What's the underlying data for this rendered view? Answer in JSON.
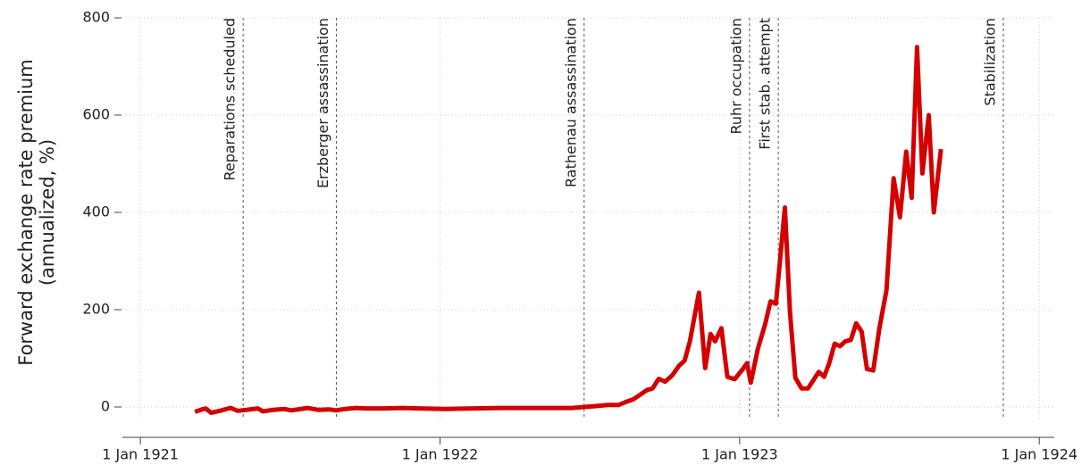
{
  "chart_data": {
    "type": "line",
    "y_label": [
      "Forward exchange rate premium",
      "(annualized, %)"
    ],
    "x": [
      1921.182,
      1921.206,
      1921.218,
      1921.236,
      1921.265,
      1921.301,
      1921.325,
      1921.355,
      1921.391,
      1921.409,
      1921.444,
      1921.48,
      1921.504,
      1921.558,
      1921.593,
      1921.629,
      1921.653,
      1921.683,
      1921.719,
      1921.755,
      1921.814,
      1921.874,
      1921.933,
      1922.023,
      1922.112,
      1922.202,
      1922.321,
      1922.44,
      1922.524,
      1922.56,
      1922.596,
      1922.619,
      1922.643,
      1922.667,
      1922.691,
      1922.709,
      1922.73,
      1922.751,
      1922.775,
      1922.798,
      1922.816,
      1922.834,
      1922.864,
      1922.885,
      1922.903,
      1922.918,
      1922.939,
      1922.959,
      1922.983,
      1923.007,
      1923.025,
      1923.037,
      1923.061,
      1923.085,
      1923.103,
      1923.121,
      1923.133,
      1923.151,
      1923.168,
      1923.186,
      1923.207,
      1923.228,
      1923.246,
      1923.264,
      1923.282,
      1923.299,
      1923.317,
      1923.335,
      1923.353,
      1923.371,
      1923.389,
      1923.407,
      1923.425,
      1923.446,
      1923.466,
      1923.49,
      1923.514,
      1923.535,
      1923.556,
      1923.574,
      1923.592,
      1923.61,
      1923.631,
      1923.648,
      1923.672
    ],
    "series": [
      {
        "color": "#d40000",
        "values": [
          -10,
          -5,
          -3,
          -12,
          -8,
          -2,
          -8,
          -6,
          -3,
          -9,
          -6,
          -4,
          -7,
          -2,
          -6,
          -5,
          -7,
          -4,
          -2,
          -3,
          -3,
          -2,
          -3,
          -4,
          -3,
          -2,
          -2,
          -2,
          2,
          4,
          4,
          10,
          15,
          25,
          35,
          38,
          58,
          52,
          65,
          85,
          95,
          135,
          235,
          80,
          150,
          135,
          162,
          62,
          57,
          75,
          90,
          50,
          120,
          170,
          217,
          212,
          290,
          410,
          195,
          60,
          38,
          38,
          55,
          72,
          62,
          90,
          130,
          125,
          135,
          138,
          172,
          155,
          78,
          75,
          160,
          240,
          470,
          390,
          525,
          430,
          740,
          480,
          600,
          400,
          530
        ]
      }
    ],
    "xlim": [
      1920.94,
      1924.05
    ],
    "xticks": [
      {
        "value": 1921,
        "label": "1 Jan 1921"
      },
      {
        "value": 1922,
        "label": "1 Jan 1922"
      },
      {
        "value": 1923,
        "label": "1 Jan 1923"
      },
      {
        "value": 1924,
        "label": "1 Jan 1924"
      }
    ],
    "ylim": [
      -25,
      800
    ],
    "yticks": [
      0,
      200,
      400,
      600,
      800
    ],
    "grid": true,
    "events": [
      {
        "label": "Reparations scheduled",
        "x": 1921.343
      },
      {
        "label": "Erzberger assassination",
        "x": 1921.654
      },
      {
        "label": "Rathenau assassination",
        "x": 1922.481
      },
      {
        "label": "Ruhr occupation",
        "x": 1923.033
      },
      {
        "label": "First stab. attempt",
        "x": 1923.129
      },
      {
        "label": "Stabilization",
        "x": 1923.88
      }
    ]
  }
}
